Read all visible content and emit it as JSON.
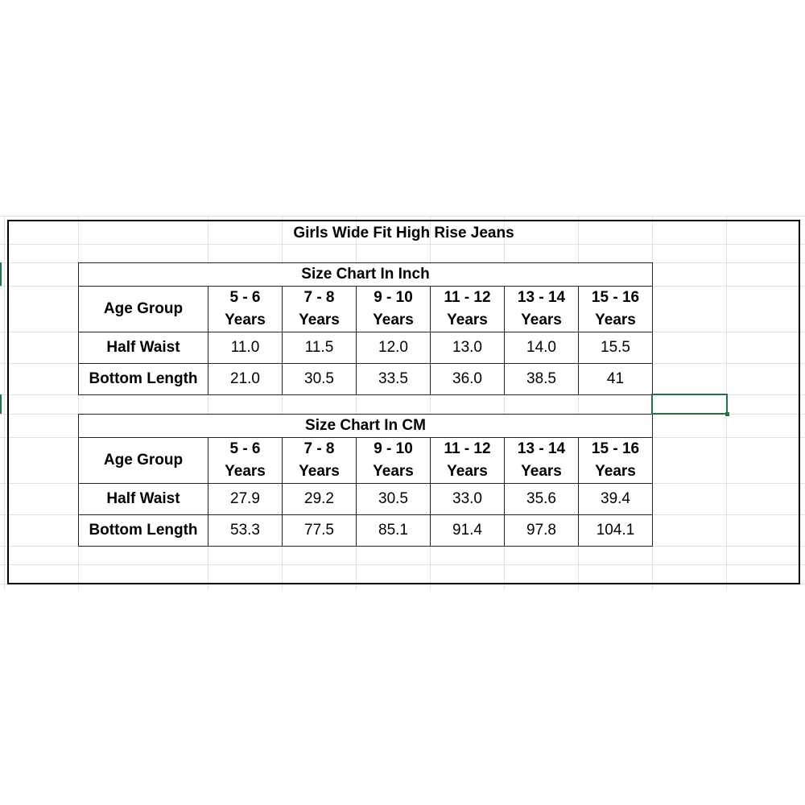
{
  "title": "Girls Wide Fit High Rise Jeans",
  "accent_color": "#217346",
  "tables": [
    {
      "caption": "Size Chart In Inch",
      "row_header": "Age Group",
      "columns": [
        [
          "5 - 6",
          "Years"
        ],
        [
          "7 - 8",
          "Years"
        ],
        [
          "9 - 10",
          "Years"
        ],
        [
          "11 - 12",
          "Years"
        ],
        [
          "13 - 14",
          "Years"
        ],
        [
          "15 - 16",
          "Years"
        ]
      ],
      "rows": [
        {
          "label": "Half Waist",
          "values": [
            "11.0",
            "11.5",
            "12.0",
            "13.0",
            "14.0",
            "15.5"
          ]
        },
        {
          "label": "Bottom Length",
          "values": [
            "21.0",
            "30.5",
            "33.5",
            "36.0",
            "38.5",
            "41"
          ]
        }
      ]
    },
    {
      "caption": "Size Chart In CM",
      "row_header": "Age Group",
      "columns": [
        [
          "5 - 6",
          "Years"
        ],
        [
          "7 - 8",
          "Years"
        ],
        [
          "9 - 10",
          "Years"
        ],
        [
          "11 - 12",
          "Years"
        ],
        [
          "13 - 14",
          "Years"
        ],
        [
          "15 - 16",
          "Years"
        ]
      ],
      "rows": [
        {
          "label": "Half Waist",
          "values": [
            "27.9",
            "29.2",
            "30.5",
            "33.0",
            "35.6",
            "39.4"
          ]
        },
        {
          "label": "Bottom Length",
          "values": [
            "53.3",
            "77.5",
            "85.1",
            "91.4",
            "97.8",
            "104.1"
          ]
        }
      ]
    }
  ]
}
